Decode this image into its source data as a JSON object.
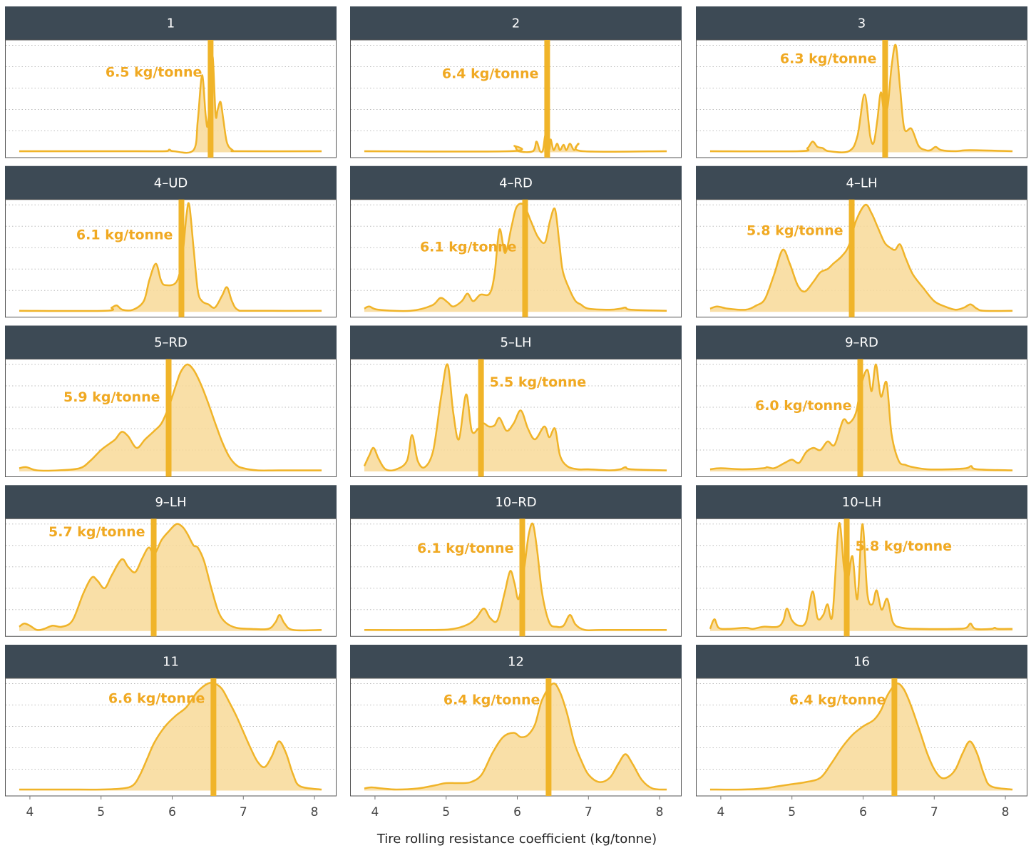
{
  "chart_data": {
    "type": "density",
    "xlabel": "Tire rolling resistance coefficient (kg/tonne)",
    "xlim": [
      3.65,
      8.31
    ],
    "xticks": [
      4,
      5,
      6,
      7,
      8
    ],
    "ylim": [
      -0.05,
      1.05
    ],
    "ygrid": [
      0.2,
      0.4,
      0.6,
      0.8,
      1.0
    ],
    "color": "#f0b429",
    "fill": "#f8d998",
    "panels": [
      {
        "title": "1",
        "mean": 6.54,
        "mean_label": "6.5 kg/tonne",
        "x": [
          3.85,
          5.5,
          5.9,
          5.96,
          6.02,
          6.3,
          6.36,
          6.42,
          6.47,
          6.5,
          6.54,
          6.57,
          6.61,
          6.64,
          6.68,
          6.72,
          6.77,
          6.85,
          6.95,
          8.1
        ],
        "values": [
          0.01,
          0.01,
          0.01,
          0.025,
          0.01,
          0.02,
          0.3,
          0.72,
          0.35,
          0.25,
          0.6,
          0.89,
          0.35,
          0.4,
          0.47,
          0.3,
          0.09,
          0.02,
          0.01,
          0.01
        ]
      },
      {
        "title": "2",
        "mean": 6.42,
        "mean_label": "6.4 kg/tonne",
        "x": [
          3.85,
          5.9,
          5.96,
          6.02,
          6.22,
          6.27,
          6.32,
          6.36,
          6.39,
          6.42,
          6.45,
          6.47,
          6.51,
          6.56,
          6.6,
          6.65,
          6.69,
          6.74,
          6.8,
          6.86,
          6.92,
          8.1
        ],
        "values": [
          0.01,
          0.01,
          0.06,
          0.01,
          0.01,
          0.1,
          0.01,
          0.02,
          0.15,
          0.2,
          0.03,
          0.12,
          0.02,
          0.08,
          0.02,
          0.07,
          0.02,
          0.08,
          0.02,
          0.08,
          0.01,
          0.01
        ]
      },
      {
        "title": "3",
        "mean": 6.31,
        "mean_label": "6.3 kg/tonne",
        "x": [
          3.85,
          5.1,
          5.22,
          5.29,
          5.36,
          5.43,
          5.52,
          5.8,
          5.92,
          6.02,
          6.1,
          6.15,
          6.2,
          6.25,
          6.3,
          6.35,
          6.4,
          6.46,
          6.52,
          6.58,
          6.68,
          6.78,
          6.88,
          6.95,
          7.02,
          7.1,
          7.3,
          7.5,
          8.1
        ],
        "values": [
          0.01,
          0.01,
          0.04,
          0.1,
          0.05,
          0.04,
          0.01,
          0.01,
          0.15,
          0.54,
          0.15,
          0.09,
          0.3,
          0.56,
          0.35,
          0.45,
          0.8,
          1.0,
          0.6,
          0.22,
          0.22,
          0.06,
          0.02,
          0.02,
          0.05,
          0.02,
          0.01,
          0.02,
          0.01
        ]
      },
      {
        "title": "4–UD",
        "mean": 6.13,
        "mean_label": "6.1 kg/tonne",
        "x": [
          3.85,
          5.05,
          5.15,
          5.22,
          5.3,
          5.45,
          5.6,
          5.68,
          5.77,
          5.84,
          5.9,
          6.06,
          6.14,
          6.2,
          6.24,
          6.3,
          6.36,
          6.42,
          6.51,
          6.6,
          6.7,
          6.77,
          6.84,
          6.92,
          7.1,
          8.1
        ],
        "values": [
          0.01,
          0.01,
          0.04,
          0.06,
          0.02,
          0.02,
          0.1,
          0.3,
          0.45,
          0.3,
          0.25,
          0.28,
          0.5,
          0.9,
          1.0,
          0.6,
          0.2,
          0.1,
          0.07,
          0.04,
          0.15,
          0.23,
          0.1,
          0.02,
          0.01,
          0.01
        ]
      },
      {
        "title": "4–RD",
        "mean": 6.11,
        "mean_label": "6.1 kg/tonne",
        "x": [
          3.85,
          3.92,
          4.05,
          4.5,
          4.8,
          4.92,
          5.02,
          5.1,
          5.22,
          5.3,
          5.38,
          5.48,
          5.61,
          5.68,
          5.75,
          5.83,
          5.92,
          5.99,
          6.09,
          6.19,
          6.29,
          6.39,
          6.46,
          6.53,
          6.59,
          6.64,
          6.74,
          6.82,
          6.89,
          7.0,
          7.3,
          7.45,
          7.52,
          7.6,
          8.1
        ],
        "values": [
          0.03,
          0.05,
          0.02,
          0.01,
          0.06,
          0.13,
          0.09,
          0.05,
          0.1,
          0.17,
          0.1,
          0.16,
          0.17,
          0.35,
          0.77,
          0.55,
          0.8,
          0.98,
          1.0,
          0.85,
          0.7,
          0.65,
          0.85,
          0.96,
          0.65,
          0.38,
          0.2,
          0.1,
          0.07,
          0.03,
          0.02,
          0.03,
          0.04,
          0.02,
          0.01
        ]
      },
      {
        "title": "4–LH",
        "mean": 5.84,
        "mean_label": "5.8 kg/tonne",
        "x": [
          3.85,
          3.95,
          4.1,
          4.35,
          4.5,
          4.62,
          4.75,
          4.87,
          4.97,
          5.08,
          5.18,
          5.3,
          5.4,
          5.5,
          5.58,
          5.7,
          5.8,
          5.9,
          6.03,
          6.12,
          6.2,
          6.3,
          6.38,
          6.45,
          6.52,
          6.6,
          6.7,
          6.85,
          7.0,
          7.15,
          7.3,
          7.42,
          7.51,
          7.6,
          7.7,
          8.1
        ],
        "values": [
          0.03,
          0.05,
          0.03,
          0.02,
          0.06,
          0.12,
          0.35,
          0.58,
          0.45,
          0.25,
          0.19,
          0.28,
          0.37,
          0.4,
          0.45,
          0.52,
          0.62,
          0.85,
          1.0,
          0.92,
          0.8,
          0.65,
          0.6,
          0.58,
          0.63,
          0.5,
          0.35,
          0.22,
          0.1,
          0.05,
          0.02,
          0.04,
          0.07,
          0.03,
          0.01,
          0.01
        ]
      },
      {
        "title": "5–RD",
        "mean": 5.95,
        "mean_label": "5.9 kg/tonne",
        "x": [
          3.85,
          3.95,
          4.1,
          4.4,
          4.7,
          4.85,
          5.0,
          5.12,
          5.2,
          5.29,
          5.38,
          5.5,
          5.62,
          5.75,
          5.85,
          5.95,
          6.05,
          6.12,
          6.21,
          6.3,
          6.4,
          6.5,
          6.6,
          6.7,
          6.8,
          6.9,
          7.0,
          7.2,
          7.5,
          8.1
        ],
        "values": [
          0.03,
          0.04,
          0.01,
          0.01,
          0.03,
          0.1,
          0.2,
          0.26,
          0.3,
          0.37,
          0.33,
          0.22,
          0.3,
          0.38,
          0.45,
          0.6,
          0.8,
          0.93,
          1.0,
          0.95,
          0.82,
          0.65,
          0.46,
          0.28,
          0.14,
          0.06,
          0.03,
          0.01,
          0.01,
          0.01
        ]
      },
      {
        "title": "5–LH",
        "mean": 5.49,
        "mean_label": "5.5 kg/tonne",
        "x": [
          3.85,
          3.92,
          3.98,
          4.05,
          4.15,
          4.3,
          4.45,
          4.52,
          4.6,
          4.7,
          4.82,
          4.93,
          5.02,
          5.1,
          5.18,
          5.28,
          5.36,
          5.45,
          5.52,
          5.6,
          5.68,
          5.75,
          5.85,
          5.95,
          6.05,
          6.15,
          6.25,
          6.38,
          6.45,
          6.53,
          6.6,
          6.7,
          6.85,
          7.0,
          7.3,
          7.45,
          7.52,
          7.6,
          8.1
        ],
        "values": [
          0.05,
          0.15,
          0.22,
          0.12,
          0.02,
          0.02,
          0.1,
          0.34,
          0.1,
          0.04,
          0.2,
          0.7,
          1.0,
          0.55,
          0.3,
          0.72,
          0.38,
          0.4,
          0.45,
          0.42,
          0.43,
          0.5,
          0.38,
          0.45,
          0.57,
          0.4,
          0.3,
          0.42,
          0.32,
          0.4,
          0.15,
          0.05,
          0.02,
          0.02,
          0.01,
          0.02,
          0.04,
          0.02,
          0.01
        ]
      },
      {
        "title": "9–RD",
        "mean": 5.96,
        "mean_label": "6.0 kg/tonne",
        "x": [
          3.85,
          4.0,
          4.3,
          4.6,
          4.65,
          4.75,
          4.9,
          5.0,
          5.1,
          5.2,
          5.3,
          5.4,
          5.5,
          5.6,
          5.72,
          5.8,
          5.9,
          5.97,
          6.06,
          6.12,
          6.18,
          6.25,
          6.33,
          6.4,
          6.5,
          6.6,
          6.7,
          6.9,
          7.2,
          7.45,
          7.52,
          7.6,
          8.1
        ],
        "values": [
          0.02,
          0.03,
          0.02,
          0.03,
          0.04,
          0.03,
          0.08,
          0.11,
          0.08,
          0.18,
          0.22,
          0.2,
          0.28,
          0.25,
          0.48,
          0.45,
          0.55,
          0.8,
          0.95,
          0.75,
          1.0,
          0.7,
          0.83,
          0.35,
          0.1,
          0.06,
          0.04,
          0.02,
          0.02,
          0.03,
          0.05,
          0.02,
          0.01
        ]
      },
      {
        "title": "9–LH",
        "mean": 5.74,
        "mean_label": "5.7 kg/tonne",
        "x": [
          3.85,
          3.92,
          4.0,
          4.1,
          4.2,
          4.32,
          4.45,
          4.6,
          4.75,
          4.87,
          4.95,
          5.05,
          5.15,
          5.29,
          5.38,
          5.48,
          5.58,
          5.67,
          5.75,
          5.85,
          5.95,
          6.06,
          6.15,
          6.22,
          6.3,
          6.36,
          6.45,
          6.55,
          6.65,
          6.75,
          6.9,
          7.1,
          7.35,
          7.45,
          7.51,
          7.58,
          7.7,
          8.1
        ],
        "values": [
          0.04,
          0.07,
          0.05,
          0.01,
          0.02,
          0.05,
          0.04,
          0.1,
          0.35,
          0.5,
          0.47,
          0.4,
          0.52,
          0.67,
          0.6,
          0.55,
          0.68,
          0.78,
          0.72,
          0.85,
          0.93,
          1.0,
          0.97,
          0.9,
          0.8,
          0.78,
          0.65,
          0.4,
          0.18,
          0.08,
          0.03,
          0.02,
          0.02,
          0.08,
          0.15,
          0.07,
          0.01,
          0.01
        ]
      },
      {
        "title": "10–RD",
        "mean": 6.07,
        "mean_label": "6.1 kg/tonne",
        "x": [
          3.85,
          4.8,
          5.1,
          5.3,
          5.42,
          5.53,
          5.62,
          5.72,
          5.82,
          5.9,
          5.96,
          6.02,
          6.1,
          6.16,
          6.22,
          6.28,
          6.35,
          6.45,
          6.55,
          6.65,
          6.74,
          6.82,
          6.95,
          7.2,
          8.1
        ],
        "values": [
          0.01,
          0.01,
          0.02,
          0.06,
          0.12,
          0.21,
          0.12,
          0.1,
          0.35,
          0.56,
          0.45,
          0.3,
          0.6,
          0.9,
          1.0,
          0.75,
          0.35,
          0.08,
          0.04,
          0.05,
          0.15,
          0.06,
          0.01,
          0.01,
          0.01
        ]
      },
      {
        "title": "10–LH",
        "mean": 5.77,
        "mean_label": "5.8 kg/tonne",
        "x": [
          3.85,
          3.91,
          3.97,
          4.1,
          4.35,
          4.45,
          4.6,
          4.8,
          4.88,
          4.93,
          5.0,
          5.1,
          5.2,
          5.29,
          5.36,
          5.44,
          5.5,
          5.57,
          5.66,
          5.73,
          5.78,
          5.85,
          5.92,
          5.99,
          6.06,
          6.13,
          6.19,
          6.26,
          6.34,
          6.42,
          6.55,
          6.8,
          7.3,
          7.45,
          7.51,
          7.58,
          7.8,
          7.85,
          7.9,
          8.1
        ],
        "values": [
          0.02,
          0.11,
          0.03,
          0.02,
          0.03,
          0.02,
          0.04,
          0.04,
          0.1,
          0.21,
          0.1,
          0.05,
          0.09,
          0.37,
          0.12,
          0.15,
          0.25,
          0.15,
          1.0,
          0.6,
          0.45,
          0.7,
          0.3,
          1.0,
          0.35,
          0.25,
          0.38,
          0.2,
          0.3,
          0.08,
          0.03,
          0.02,
          0.02,
          0.03,
          0.07,
          0.02,
          0.02,
          0.03,
          0.02,
          0.02
        ]
      },
      {
        "title": "11",
        "mean": 6.58,
        "mean_label": "6.6 kg/tonne",
        "x": [
          3.85,
          4.5,
          5.0,
          5.3,
          5.45,
          5.55,
          5.65,
          5.75,
          5.9,
          6.05,
          6.2,
          6.35,
          6.5,
          6.6,
          6.7,
          6.8,
          6.9,
          7.0,
          7.1,
          7.2,
          7.3,
          7.4,
          7.5,
          7.6,
          7.7,
          7.8,
          8.1
        ],
        "values": [
          0.01,
          0.01,
          0.01,
          0.02,
          0.05,
          0.15,
          0.3,
          0.45,
          0.6,
          0.7,
          0.78,
          0.92,
          1.0,
          1.0,
          0.95,
          0.83,
          0.7,
          0.55,
          0.4,
          0.27,
          0.22,
          0.32,
          0.46,
          0.35,
          0.15,
          0.04,
          0.01
        ]
      },
      {
        "title": "12",
        "mean": 6.44,
        "mean_label": "6.4 kg/tonne",
        "x": [
          3.85,
          3.95,
          4.1,
          4.3,
          4.6,
          4.85,
          5.0,
          5.2,
          5.35,
          5.5,
          5.65,
          5.8,
          5.95,
          6.05,
          6.15,
          6.25,
          6.35,
          6.5,
          6.6,
          6.7,
          6.8,
          6.9,
          7.0,
          7.15,
          7.3,
          7.42,
          7.52,
          7.62,
          7.75,
          7.9,
          8.1
        ],
        "values": [
          0.02,
          0.03,
          0.02,
          0.01,
          0.02,
          0.05,
          0.07,
          0.07,
          0.08,
          0.15,
          0.35,
          0.5,
          0.54,
          0.5,
          0.52,
          0.62,
          0.85,
          1.0,
          0.92,
          0.72,
          0.45,
          0.28,
          0.15,
          0.08,
          0.12,
          0.25,
          0.34,
          0.25,
          0.1,
          0.02,
          0.01
        ]
      },
      {
        "title": "16",
        "mean": 6.44,
        "mean_label": "6.4 kg/tonne",
        "x": [
          3.85,
          4.3,
          4.6,
          4.8,
          5.0,
          5.2,
          5.4,
          5.55,
          5.7,
          5.85,
          6.0,
          6.15,
          6.25,
          6.35,
          6.47,
          6.57,
          6.67,
          6.8,
          6.9,
          7.0,
          7.1,
          7.2,
          7.3,
          7.4,
          7.5,
          7.6,
          7.7,
          7.8,
          8.1
        ],
        "values": [
          0.01,
          0.01,
          0.02,
          0.04,
          0.06,
          0.08,
          0.12,
          0.25,
          0.4,
          0.52,
          0.6,
          0.66,
          0.75,
          0.9,
          1.0,
          0.95,
          0.8,
          0.55,
          0.35,
          0.2,
          0.12,
          0.13,
          0.2,
          0.35,
          0.46,
          0.35,
          0.15,
          0.04,
          0.01
        ]
      }
    ]
  }
}
